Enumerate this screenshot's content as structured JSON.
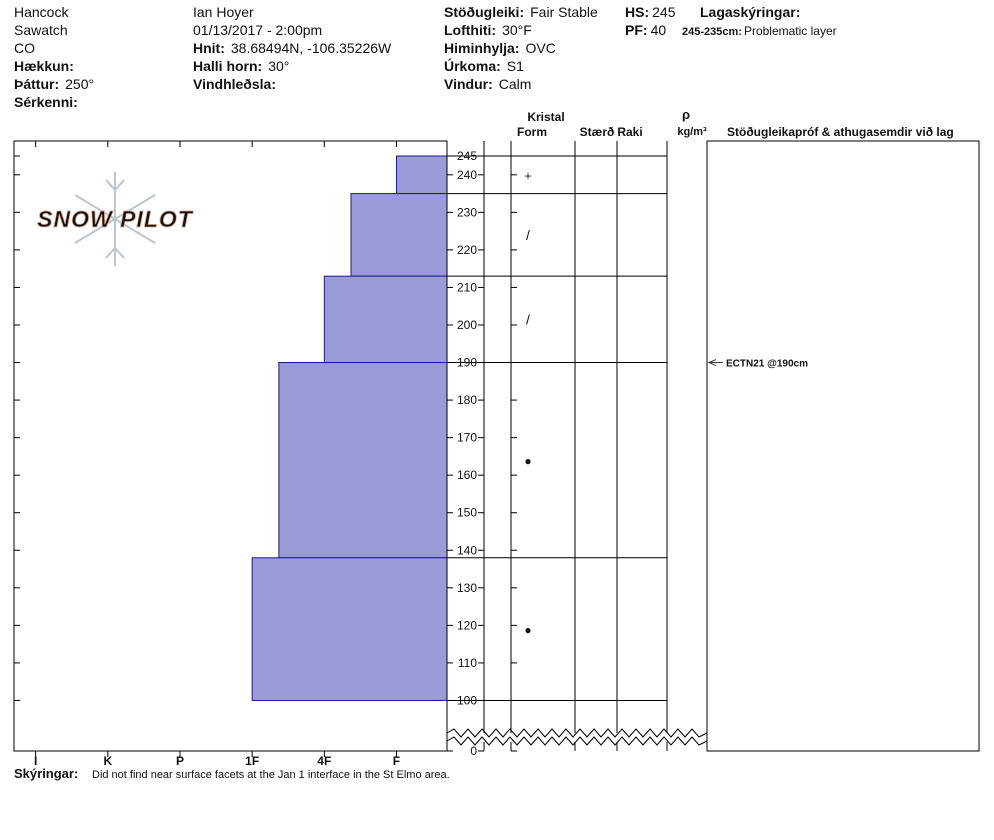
{
  "site": {
    "name": "Hancock",
    "range": "Sawatch",
    "state": "CO",
    "elevation_label": "Hækkun:",
    "aspect_label": "Þáttur:",
    "aspect": "250°",
    "features_label": "Sérkenni:"
  },
  "observation": {
    "observer": "Ian Hoyer",
    "datetime": "01/13/2017 - 2:00pm",
    "coords_label": "Hnit:",
    "coords": "38.68494N, -106.35226W",
    "slope_label": "Halli horn:",
    "slope": "30°",
    "wind_loading_label": "Vindhleðsla:"
  },
  "conditions": [
    {
      "label": "Stöðugleiki:",
      "value": "Fair Stable"
    },
    {
      "label": "Lofthiti:",
      "value": "30°F"
    },
    {
      "label": "Himinhylja:",
      "value": "OVC"
    },
    {
      "label": "Úrkoma:",
      "value": "S1"
    },
    {
      "label": "Vindur:",
      "value": "Calm"
    }
  ],
  "depths": [
    {
      "label": "HS:",
      "value": 245
    },
    {
      "label": "PF:",
      "value": 40
    }
  ],
  "layer_notes": {
    "title": "Lagaskýringar:",
    "items": [
      {
        "range": "245-235cm:",
        "note": "Problematic layer"
      }
    ]
  },
  "logo": "SNOW PILOT",
  "chart_data": {
    "type": "snowprofile",
    "ylim": [
      90,
      249
    ],
    "yticks": [
      100,
      110,
      120,
      130,
      140,
      150,
      160,
      170,
      180,
      190,
      200,
      210,
      220,
      230,
      240,
      245,
      0
    ],
    "xlim": [
      6.3,
      0.3
    ],
    "xticks": [
      {
        "value": 6,
        "label": "I"
      },
      {
        "value": 5,
        "label": "K"
      },
      {
        "value": 4,
        "label": "P"
      },
      {
        "value": 3,
        "label": "1F"
      },
      {
        "value": 2,
        "label": "4F"
      },
      {
        "value": 1,
        "label": "F"
      }
    ],
    "color": "#9b9bd8",
    "layers": [
      {
        "top": 245,
        "bottom": 235,
        "hardness": 1,
        "form": "+"
      },
      {
        "top": 235,
        "bottom": 213,
        "hardness": 1.63,
        "form": "/"
      },
      {
        "top": 213,
        "bottom": 190,
        "hardness": 2,
        "form": "/"
      },
      {
        "top": 190,
        "bottom": 138,
        "hardness": 2.63,
        "form": "●"
      },
      {
        "top": 138,
        "bottom": 100,
        "hardness": 3,
        "form": "●"
      }
    ],
    "columns": {
      "crystal": "Kristal",
      "form": "Form",
      "size": "Stærð",
      "moisture": "Raki",
      "density_symbol": "ρ",
      "density_unit": "kg/m³",
      "tests": "Stöðugleikapróf & athugasemdir við lag"
    },
    "tests": [
      {
        "label": "ECTN21 @190cm",
        "depth": 190
      }
    ]
  },
  "comments": {
    "label": "Skýringar:",
    "text": "Did not find near surface facets at the Jan 1 interface in the St Elmo area."
  }
}
